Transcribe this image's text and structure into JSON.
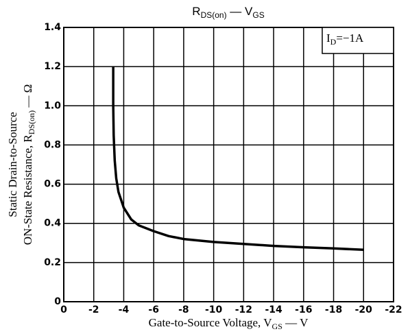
{
  "chart_data": {
    "type": "line",
    "title": [
      "R",
      "DS(on)",
      "  —  V",
      "GS"
    ],
    "xlabel": [
      "Gate-to-Source Voltage, V",
      "GS",
      " — V"
    ],
    "ylabel": [
      [
        "Static Drain-to-Source"
      ],
      [
        "ON-State Resistance, R",
        "DS(on)",
        " — Ω"
      ]
    ],
    "annotation": [
      "I",
      "D",
      "=−1A"
    ],
    "x": [
      -3.3,
      -3.3,
      -3.33,
      -3.4,
      -3.5,
      -3.65,
      -4,
      -4.5,
      -5,
      -6,
      -7,
      -8,
      -10,
      -12,
      -14,
      -16,
      -18,
      -20
    ],
    "values": [
      1.2,
      1.0,
      0.85,
      0.72,
      0.63,
      0.56,
      0.48,
      0.42,
      0.39,
      0.36,
      0.335,
      0.32,
      0.305,
      0.295,
      0.285,
      0.278,
      0.272,
      0.265
    ],
    "color": "#000000",
    "xlim": [
      0,
      -22
    ],
    "xticks": [
      0,
      -2,
      -4,
      -6,
      -8,
      -10,
      -12,
      -14,
      -16,
      -18,
      -20,
      -22
    ],
    "ylim": [
      0,
      1.4
    ],
    "yticks": [
      0,
      0.2,
      0.4,
      0.6,
      0.8,
      {
        "value": 1,
        "label": "1.0"
      },
      1.2,
      1.4
    ],
    "grid": true
  }
}
